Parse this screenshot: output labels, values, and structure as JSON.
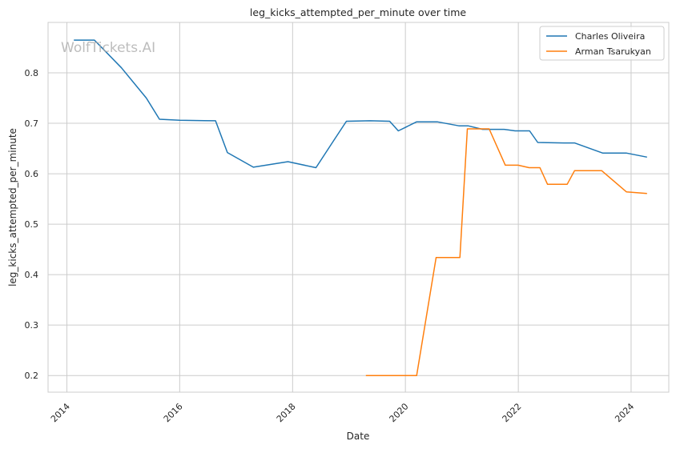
{
  "chart_data": {
    "type": "line",
    "title": "leg_kicks_attempted_per_minute over time",
    "xlabel": "Date",
    "ylabel": "leg_kicks_attempted_per_minute",
    "watermark": "WolfTickets.AI",
    "x_type": "date",
    "xlim": [
      "2013-09-01",
      "2024-09-01"
    ],
    "ylim": [
      0.167,
      0.9
    ],
    "x_ticks": [
      "2014",
      "2016",
      "2018",
      "2020",
      "2022",
      "2024"
    ],
    "y_ticks": [
      "0.2",
      "0.3",
      "0.4",
      "0.5",
      "0.6",
      "0.7",
      "0.8"
    ],
    "grid": true,
    "legend": "top-right",
    "series": [
      {
        "name": "Charles Oliveira",
        "color": "#1f77b4",
        "points": [
          [
            "2014-02-15",
            0.865
          ],
          [
            "2014-06-28",
            0.865
          ],
          [
            "2014-12-20",
            0.81
          ],
          [
            "2015-05-30",
            0.75
          ],
          [
            "2015-08-23",
            0.708
          ],
          [
            "2016-01-02",
            0.706
          ],
          [
            "2016-08-20",
            0.705
          ],
          [
            "2016-11-05",
            0.642
          ],
          [
            "2017-04-22",
            0.613
          ],
          [
            "2017-12-02",
            0.624
          ],
          [
            "2018-06-01",
            0.612
          ],
          [
            "2018-09-22",
            0.665
          ],
          [
            "2018-12-15",
            0.704
          ],
          [
            "2019-05-18",
            0.705
          ],
          [
            "2019-09-21",
            0.704
          ],
          [
            "2019-11-16",
            0.685
          ],
          [
            "2020-03-14",
            0.703
          ],
          [
            "2020-07-25",
            0.703
          ],
          [
            "2020-12-12",
            0.695
          ],
          [
            "2021-02-10",
            0.695
          ],
          [
            "2021-05-15",
            0.688
          ],
          [
            "2021-10-01",
            0.688
          ],
          [
            "2021-12-11",
            0.685
          ],
          [
            "2022-03-15",
            0.685
          ],
          [
            "2022-05-07",
            0.662
          ],
          [
            "2022-10-22",
            0.661
          ],
          [
            "2022-12-31",
            0.661
          ],
          [
            "2023-06-30",
            0.641
          ],
          [
            "2023-11-30",
            0.641
          ],
          [
            "2024-04-13",
            0.633
          ]
        ]
      },
      {
        "name": "Arman Tsarukyan",
        "color": "#ff7f0e",
        "points": [
          [
            "2019-04-20",
            0.2
          ],
          [
            "2020-03-14",
            0.2
          ],
          [
            "2020-07-18",
            0.434
          ],
          [
            "2020-12-19",
            0.434
          ],
          [
            "2021-02-05",
            0.689
          ],
          [
            "2021-06-26",
            0.689
          ],
          [
            "2021-10-09",
            0.617
          ],
          [
            "2021-12-31",
            0.617
          ],
          [
            "2022-03-12",
            0.612
          ],
          [
            "2022-05-21",
            0.612
          ],
          [
            "2022-07-09",
            0.579
          ],
          [
            "2022-11-13",
            0.579
          ],
          [
            "2022-12-31",
            0.606
          ],
          [
            "2023-06-25",
            0.606
          ],
          [
            "2023-12-02",
            0.564
          ],
          [
            "2024-04-13",
            0.561
          ]
        ]
      }
    ]
  }
}
